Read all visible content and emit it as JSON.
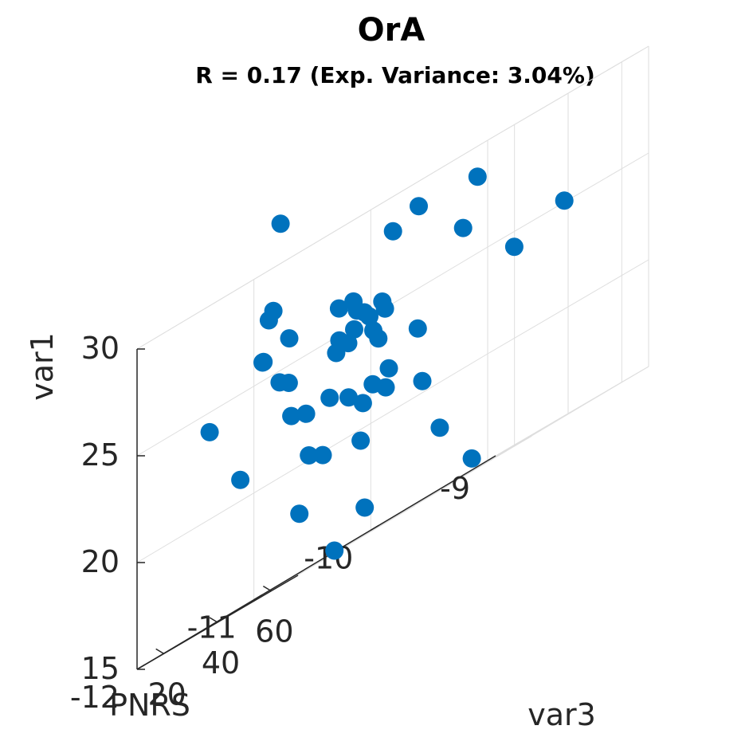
{
  "chart_data": {
    "type": "scatter",
    "projection": "3d",
    "title": "OrA",
    "subtitle": "R = 0.17 (Exp. Variance: 3.04%)",
    "xlabel": "PNRS",
    "ylabel": "var3",
    "zlabel": "var1",
    "xlim": [
      -12,
      -9
    ],
    "ylim": [
      10,
      70
    ],
    "zlim": [
      15,
      30
    ],
    "x_ticks": [
      -9,
      -10,
      -11,
      -12
    ],
    "y_ticks": [
      20,
      40,
      60
    ],
    "z_ticks": [
      15,
      20,
      25,
      30
    ],
    "grid": true,
    "marker_color": "#0072BD",
    "series": [
      {
        "x": [
          -10.6,
          -9.6,
          -10.6,
          -9.4,
          -9.3,
          -11.3,
          -11.1,
          -9.5,
          -10.3,
          -10.2,
          -10.4,
          -10.4,
          -11.7,
          -10.2,
          -10.2,
          -11.0,
          -11.4,
          -10.8,
          -11.4,
          -10.3,
          -11.3,
          -10.8,
          -10.7,
          -10.9,
          -10.5,
          -11.5,
          -11.4,
          -11.4,
          -10.9,
          -10.3,
          -10.3,
          -11.3,
          -10.3,
          -11.3,
          -10.6,
          -10.5,
          -11.1,
          -11.3,
          -10.5,
          -10.7,
          -11.3,
          -11.2,
          -11.7,
          -9.8,
          -11.0,
          -10.1,
          -11.2
        ],
        "y": [
          54.0,
          27.0,
          31.0,
          56.0,
          33.0,
          33.0,
          21.6,
          28.0,
          16.6,
          27.0,
          25.0,
          19.0,
          24.0,
          23.0,
          24.0,
          23.0,
          33.0,
          33.0,
          31.0,
          24.0,
          18.0,
          44.3,
          34.3,
          36.3,
          34.6,
          35.0,
          37.0,
          40.6,
          37.5,
          29.8,
          23.8,
          37.0,
          28.6,
          42.5,
          33.2,
          28.0,
          40.0,
          51.3,
          51.0,
          58.0,
          40.0,
          54.0,
          61.0,
          27.0,
          40.0,
          52.0,
          60.0
        ],
        "z": [
          28.9,
          26.6,
          25.7,
          25.1,
          24.3,
          31.9,
          28.0,
          28.6,
          26.2,
          28.4,
          25.4,
          24.4,
          24.1,
          25.4,
          25.0,
          24.2,
          27.7,
          26.3,
          25.9,
          24.3,
          21.0,
          25.1,
          24.9,
          24.3,
          23.8,
          25.9,
          24.5,
          26.3,
          24.8,
          22.1,
          21.8,
          22.6,
          21.3,
          22.3,
          21.2,
          19.5,
          19.9,
          22.4,
          20.6,
          23.2,
          17.8,
          21.9,
          20.3,
          17.9,
          15.1,
          15.6,
          16.3
        ]
      }
    ]
  }
}
